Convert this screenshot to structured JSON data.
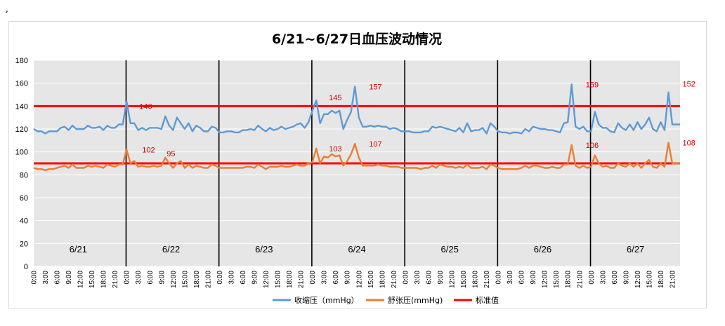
{
  "corner_mark": ",",
  "chart_data": {
    "type": "line",
    "title": "6/21~6/27日血压波动情况",
    "xlabel": "",
    "ylabel": "",
    "ylim": [
      0,
      180
    ],
    "yticks": [
      0,
      20,
      40,
      60,
      80,
      100,
      120,
      140,
      160,
      180
    ],
    "grid": true,
    "background": "#e6e6e6",
    "hours_per_day_ticks": [
      "0:00",
      "3:00",
      "6:00",
      "9:00",
      "12:00",
      "15:00",
      "18:00",
      "21:00"
    ],
    "days": [
      "6/21",
      "6/22",
      "6/23",
      "6/24",
      "6/25",
      "6/26",
      "6/27"
    ],
    "legend": {
      "position": "bottom"
    },
    "series": [
      {
        "name": "收缩压（mmHg）",
        "color": "#5b9bd5",
        "values": [
          120,
          118,
          118,
          116,
          118,
          118,
          118,
          121,
          122,
          119,
          123,
          120,
          120,
          120,
          123,
          121,
          121,
          122,
          119,
          123,
          121,
          121,
          124,
          124,
          144,
          125,
          125,
          119,
          121,
          119,
          121,
          121,
          121,
          120,
          131,
          123,
          119,
          130,
          125,
          120,
          125,
          118,
          123,
          121,
          118,
          118,
          122,
          121,
          117,
          117,
          118,
          118,
          117,
          117,
          119,
          119,
          120,
          119,
          123,
          120,
          118,
          121,
          119,
          120,
          122,
          120,
          121,
          122,
          124,
          125,
          121,
          126,
          136,
          145,
          125,
          133,
          133,
          136,
          134,
          136,
          120,
          128,
          135,
          157,
          130,
          122,
          122,
          123,
          122,
          123,
          122,
          122,
          120,
          121,
          120,
          118,
          118,
          118,
          117,
          117,
          117,
          118,
          118,
          122,
          121,
          122,
          121,
          120,
          119,
          118,
          121,
          117,
          125,
          118,
          119,
          119,
          121,
          116,
          125,
          122,
          118,
          117,
          117,
          116,
          117,
          117,
          116,
          120,
          118,
          122,
          121,
          120,
          120,
          119,
          119,
          118,
          117,
          125,
          126,
          159,
          122,
          120,
          122,
          118,
          118,
          135,
          124,
          121,
          121,
          118,
          117,
          125,
          121,
          119,
          124,
          119,
          126,
          120,
          124,
          130,
          120,
          118,
          126,
          119,
          152,
          124,
          124,
          124
        ]
      },
      {
        "name": "舒张压(mmHg)",
        "color": "#ed7d31",
        "values": [
          86,
          85,
          85,
          84,
          85,
          85,
          86,
          87,
          88,
          86,
          89,
          86,
          86,
          86,
          88,
          87,
          88,
          87,
          86,
          89,
          88,
          87,
          89,
          89,
          102,
          90,
          92,
          87,
          88,
          87,
          87,
          88,
          87,
          88,
          95,
          90,
          86,
          90,
          92,
          86,
          89,
          86,
          88,
          87,
          86,
          86,
          89,
          88,
          86,
          86,
          86,
          86,
          86,
          86,
          86,
          87,
          87,
          86,
          89,
          87,
          85,
          87,
          87,
          87,
          88,
          87,
          87,
          88,
          89,
          88,
          88,
          90,
          91,
          103,
          90,
          96,
          95,
          98,
          96,
          97,
          88,
          92,
          98,
          107,
          95,
          88,
          88,
          88,
          88,
          89,
          88,
          88,
          87,
          87,
          87,
          86,
          86,
          86,
          86,
          86,
          85,
          86,
          86,
          88,
          86,
          89,
          88,
          87,
          87,
          86,
          87,
          86,
          89,
          86,
          86,
          86,
          87,
          85,
          89,
          88,
          86,
          85,
          85,
          85,
          85,
          85,
          86,
          88,
          86,
          88,
          88,
          87,
          86,
          86,
          87,
          86,
          86,
          89,
          89,
          106,
          88,
          86,
          88,
          86,
          87,
          97,
          90,
          87,
          88,
          86,
          86,
          90,
          88,
          87,
          90,
          87,
          90,
          86,
          90,
          93,
          87,
          86,
          90,
          87,
          108,
          90,
          90,
          90
        ]
      },
      {
        "name": "标准值",
        "color": "#ff0000",
        "lines": [
          140,
          90
        ]
      }
    ],
    "annotations": [
      "140",
      "102",
      "95",
      "145",
      "103",
      "157",
      "107",
      "106",
      "159",
      "152",
      "108"
    ]
  }
}
